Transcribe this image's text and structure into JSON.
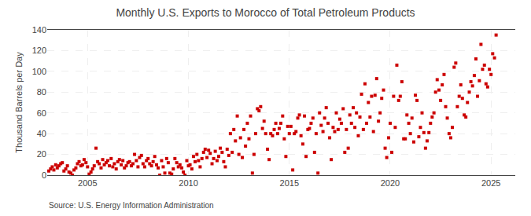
{
  "chart_data": {
    "type": "scatter",
    "title": "Monthly U.S. Exports to Morocco of Total Petroleum Products",
    "ylabel": "Thousand Barrels per Day",
    "annotations": [
      "Source: U.S. Energy Information Administration"
    ],
    "color": "#cc0000",
    "marker": "square",
    "grid": true,
    "xlim": [
      2003.0,
      2026.2
    ],
    "ylim": [
      0,
      140
    ],
    "xticks": [
      2005,
      2010,
      2015,
      2020,
      2025
    ],
    "yticks": [
      0,
      20,
      40,
      60,
      80,
      100,
      120,
      140
    ],
    "x": [
      2003.08,
      2003.17,
      2003.25,
      2003.33,
      2003.42,
      2003.5,
      2003.58,
      2003.67,
      2003.75,
      2003.83,
      2003.92,
      2004.0,
      2004.08,
      2004.17,
      2004.25,
      2004.33,
      2004.42,
      2004.5,
      2004.58,
      2004.67,
      2004.75,
      2004.83,
      2004.92,
      2005.0,
      2005.08,
      2005.17,
      2005.25,
      2005.33,
      2005.42,
      2005.5,
      2005.58,
      2005.67,
      2005.75,
      2005.83,
      2005.92,
      2006.0,
      2006.08,
      2006.17,
      2006.25,
      2006.33,
      2006.42,
      2006.5,
      2006.58,
      2006.67,
      2006.75,
      2006.83,
      2006.92,
      2007.0,
      2007.08,
      2007.17,
      2007.25,
      2007.33,
      2007.42,
      2007.5,
      2007.58,
      2007.67,
      2007.75,
      2007.83,
      2007.92,
      2008.0,
      2008.08,
      2008.17,
      2008.25,
      2008.33,
      2008.42,
      2008.5,
      2008.58,
      2008.67,
      2008.75,
      2008.83,
      2008.92,
      2009.0,
      2009.08,
      2009.17,
      2009.25,
      2009.33,
      2009.42,
      2009.5,
      2009.58,
      2009.67,
      2009.75,
      2009.83,
      2009.92,
      2010.0,
      2010.08,
      2010.17,
      2010.25,
      2010.33,
      2010.42,
      2010.5,
      2010.58,
      2010.67,
      2010.75,
      2010.83,
      2010.92,
      2011.0,
      2011.08,
      2011.17,
      2011.25,
      2011.33,
      2011.42,
      2011.5,
      2011.58,
      2011.67,
      2011.75,
      2011.83,
      2011.92,
      2012.0,
      2012.08,
      2012.17,
      2012.25,
      2012.33,
      2012.42,
      2012.5,
      2012.58,
      2012.67,
      2012.75,
      2012.83,
      2012.92,
      2013.0,
      2013.08,
      2013.17,
      2013.25,
      2013.33,
      2013.42,
      2013.5,
      2013.58,
      2013.67,
      2013.75,
      2013.83,
      2013.92,
      2014.0,
      2014.08,
      2014.17,
      2014.25,
      2014.33,
      2014.42,
      2014.5,
      2014.58,
      2014.67,
      2014.75,
      2014.83,
      2014.92,
      2015.0,
      2015.08,
      2015.17,
      2015.25,
      2015.33,
      2015.42,
      2015.5,
      2015.58,
      2015.67,
      2015.75,
      2015.83,
      2015.92,
      2016.0,
      2016.08,
      2016.17,
      2016.25,
      2016.33,
      2016.42,
      2016.5,
      2016.58,
      2016.67,
      2016.75,
      2016.83,
      2016.92,
      2017.0,
      2017.08,
      2017.17,
      2017.25,
      2017.33,
      2017.42,
      2017.5,
      2017.58,
      2017.67,
      2017.75,
      2017.83,
      2017.92,
      2018.0,
      2018.08,
      2018.17,
      2018.25,
      2018.33,
      2018.42,
      2018.5,
      2018.58,
      2018.67,
      2018.75,
      2018.83,
      2018.92,
      2019.0,
      2019.08,
      2019.17,
      2019.25,
      2019.33,
      2019.42,
      2019.5,
      2019.58,
      2019.67,
      2019.75,
      2019.83,
      2019.92,
      2020.0,
      2020.08,
      2020.17,
      2020.25,
      2020.33,
      2020.42,
      2020.5,
      2020.58,
      2020.67,
      2020.75,
      2020.83,
      2020.92,
      2021.0,
      2021.08,
      2021.17,
      2021.25,
      2021.33,
      2021.42,
      2021.5,
      2021.58,
      2021.67,
      2021.75,
      2021.83,
      2021.92,
      2022.0,
      2022.08,
      2022.17,
      2022.25,
      2022.33,
      2022.42,
      2022.5,
      2022.58,
      2022.67,
      2022.75,
      2022.83,
      2022.92,
      2023.0,
      2023.08,
      2023.17,
      2023.25,
      2023.33,
      2023.42,
      2023.5,
      2023.58,
      2023.67,
      2023.75,
      2023.83,
      2023.92,
      2024.0,
      2024.08,
      2024.17,
      2024.25,
      2024.33,
      2024.42,
      2024.5,
      2024.58,
      2024.67,
      2024.75,
      2024.83,
      2024.92,
      2025.0,
      2025.08,
      2025.17,
      2025.25
    ],
    "values": [
      4,
      6,
      8,
      5,
      10,
      7,
      9,
      11,
      12,
      4,
      6,
      9,
      3,
      2,
      0,
      5,
      7,
      11,
      13,
      9,
      10,
      15,
      12,
      8,
      1,
      3,
      6,
      9,
      26,
      13,
      11,
      7,
      15,
      10,
      12,
      14,
      9,
      16,
      8,
      11,
      6,
      13,
      15,
      10,
      14,
      7,
      9,
      12,
      13,
      9,
      11,
      20,
      14,
      8,
      17,
      19,
      11,
      8,
      14,
      16,
      11,
      9,
      13,
      18,
      10,
      7,
      0,
      14,
      8,
      2,
      16,
      12,
      2,
      1,
      6,
      16,
      12,
      8,
      10,
      7,
      3,
      0,
      14,
      9,
      10,
      6,
      18,
      13,
      20,
      14,
      8,
      16,
      22,
      25,
      17,
      24,
      21,
      11,
      16,
      23,
      14,
      18,
      26,
      22,
      13,
      8,
      25,
      19,
      40,
      22,
      44,
      33,
      57,
      20,
      36,
      17,
      44,
      28,
      50,
      35,
      57,
      2,
      20,
      40,
      64,
      62,
      66,
      45,
      52,
      40,
      25,
      15,
      40,
      38,
      44,
      50,
      40,
      45,
      50,
      57,
      35,
      18,
      47,
      40,
      47,
      5,
      40,
      42,
      55,
      58,
      38,
      30,
      57,
      18,
      44,
      45,
      50,
      55,
      22,
      40,
      2,
      60,
      48,
      42,
      55,
      65,
      50,
      36,
      15,
      46,
      42,
      60,
      44,
      54,
      50,
      64,
      22,
      44,
      26,
      58,
      50,
      65,
      46,
      60,
      38,
      56,
      78,
      44,
      88,
      50,
      70,
      56,
      76,
      42,
      77,
      93,
      52,
      60,
      74,
      82,
      26,
      17,
      36,
      50,
      22,
      76,
      46,
      106,
      72,
      76,
      90,
      35,
      35,
      58,
      50,
      40,
      55,
      32,
      77,
      72,
      37,
      46,
      60,
      41,
      26,
      33,
      41,
      50,
      56,
      60,
      80,
      92,
      82,
      72,
      87,
      97,
      66,
      55,
      40,
      36,
      46,
      104,
      108,
      66,
      76,
      87,
      74,
      58,
      56,
      70,
      80,
      90,
      86,
      96,
      112,
      76,
      91,
      126,
      102,
      106,
      88,
      85,
      102,
      97,
      117,
      113,
      135
    ]
  }
}
